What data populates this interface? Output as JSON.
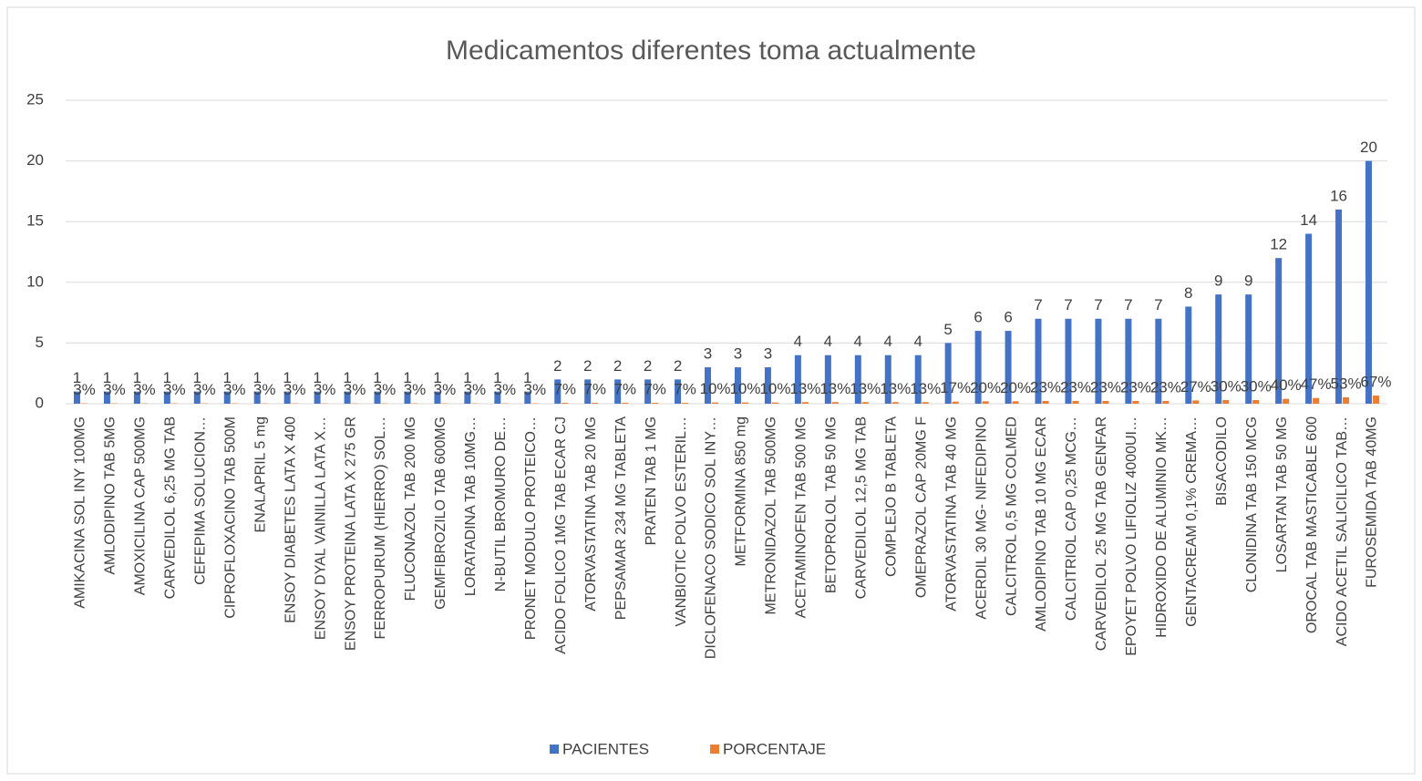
{
  "chart_data": {
    "type": "bar",
    "title": "Medicamentos diferentes toma actualmente",
    "categories": [
      "AMIKACINA SOL INY 100MG",
      "AMLODIPINO TAB 5MG",
      "AMOXICILINA CAP 500MG",
      "CARVEDILOL 6,25 MG TAB",
      "CEFEPIMA SOLUCION…",
      "CIPROFLOXACINO TAB 500M",
      "ENALAPRIL 5 mg",
      "ENSOY DIABETES LATA X 400",
      "ENSOY DYAL VAINILLA LATA X…",
      "ENSOY PROTEINA LATA X 275 GR",
      "FERROPURUM (HIERRO) SOL…",
      "FLUCONAZOL TAB 200 MG",
      "GEMFIBROZILO TAB 600MG",
      "LORATADINA TAB 10MG…",
      "N-BUTIL BROMURO DE…",
      "PRONET MODULO PROTEICO…",
      "ACIDO FOLICO 1MG TAB ECAR  CJ",
      "ATORVASTATINA TAB 20 MG",
      "PEPSAMAR 234 MG TABLETA",
      "PRATEN TAB 1 MG",
      "VANBIOTIC POLVO ESTERIL…",
      "DICLOFENACO SODICO SOL INY…",
      "METFORMINA 850 mg",
      "METRONIDAZOL TAB 500MG",
      "ACETAMINOFEN TAB 500 MG",
      "BETOPROLOL TAB 50 MG",
      "CARVEDILOL 12,5 MG TAB",
      "COMPLEJO B  TABLETA",
      "OMEPRAZOL CAP 20MG F",
      "ATORVASTATINA TAB 40 MG",
      "ACERDIL 30 MG- NIFEDIPINO",
      "CALCITROL 0,5 MG COLMED",
      "AMLODIPINO TAB 10 MG ECAR",
      "CALCITRIOL CAP 0,25 MCG…",
      "CARVEDILOL 25 MG TAB GENFAR",
      "EPOYET POLVO LIFIOLIZ 4000UI…",
      "HIDROXIDO DE ALUMINIO MK…",
      "GENTACREAM 0,1% CREMA…",
      "BISACODILO",
      "CLONIDINA TAB 150 MCG",
      "LOSARTAN TAB 50 MG",
      "OROCAL TAB MASTICABLE 600",
      "ACIDO ACETIL SALICILICO TAB…",
      "FUROSEMIDA TAB 40MG"
    ],
    "series": [
      {
        "name": "PACIENTES",
        "color": "#4472c4",
        "values": [
          1,
          1,
          1,
          1,
          1,
          1,
          1,
          1,
          1,
          1,
          1,
          1,
          1,
          1,
          1,
          1,
          2,
          2,
          2,
          2,
          2,
          3,
          3,
          3,
          4,
          4,
          4,
          4,
          4,
          5,
          6,
          6,
          7,
          7,
          7,
          7,
          7,
          8,
          9,
          9,
          12,
          14,
          16,
          20
        ]
      },
      {
        "name": "PORCENTAJE",
        "color": "#ed7d31",
        "values": [
          0.03,
          0.03,
          0.03,
          0.03,
          0.03,
          0.03,
          0.03,
          0.03,
          0.03,
          0.03,
          0.03,
          0.03,
          0.03,
          0.03,
          0.03,
          0.03,
          0.07,
          0.07,
          0.07,
          0.07,
          0.07,
          0.1,
          0.1,
          0.1,
          0.13,
          0.13,
          0.13,
          0.13,
          0.13,
          0.17,
          0.2,
          0.2,
          0.23,
          0.23,
          0.23,
          0.23,
          0.23,
          0.27,
          0.3,
          0.3,
          0.4,
          0.47,
          0.53,
          0.67
        ],
        "value_labels": [
          "3%",
          "3%",
          "3%",
          "3%",
          "3%",
          "3%",
          "3%",
          "3%",
          "3%",
          "3%",
          "3%",
          "3%",
          "3%",
          "3%",
          "3%",
          "3%",
          "7%",
          "7%",
          "7%",
          "7%",
          "7%",
          "10%",
          "10%",
          "10%",
          "13%",
          "13%",
          "13%",
          "13%",
          "13%",
          "17%",
          "20%",
          "20%",
          "23%",
          "23%",
          "23%",
          "23%",
          "23%",
          "27%",
          "30%",
          "30%",
          "40%",
          "47%",
          "53%",
          "67%"
        ]
      }
    ],
    "ylim": [
      0,
      25
    ],
    "yticks": [
      0,
      5,
      10,
      15,
      20,
      25
    ],
    "grid": true,
    "legend": "bottom"
  }
}
